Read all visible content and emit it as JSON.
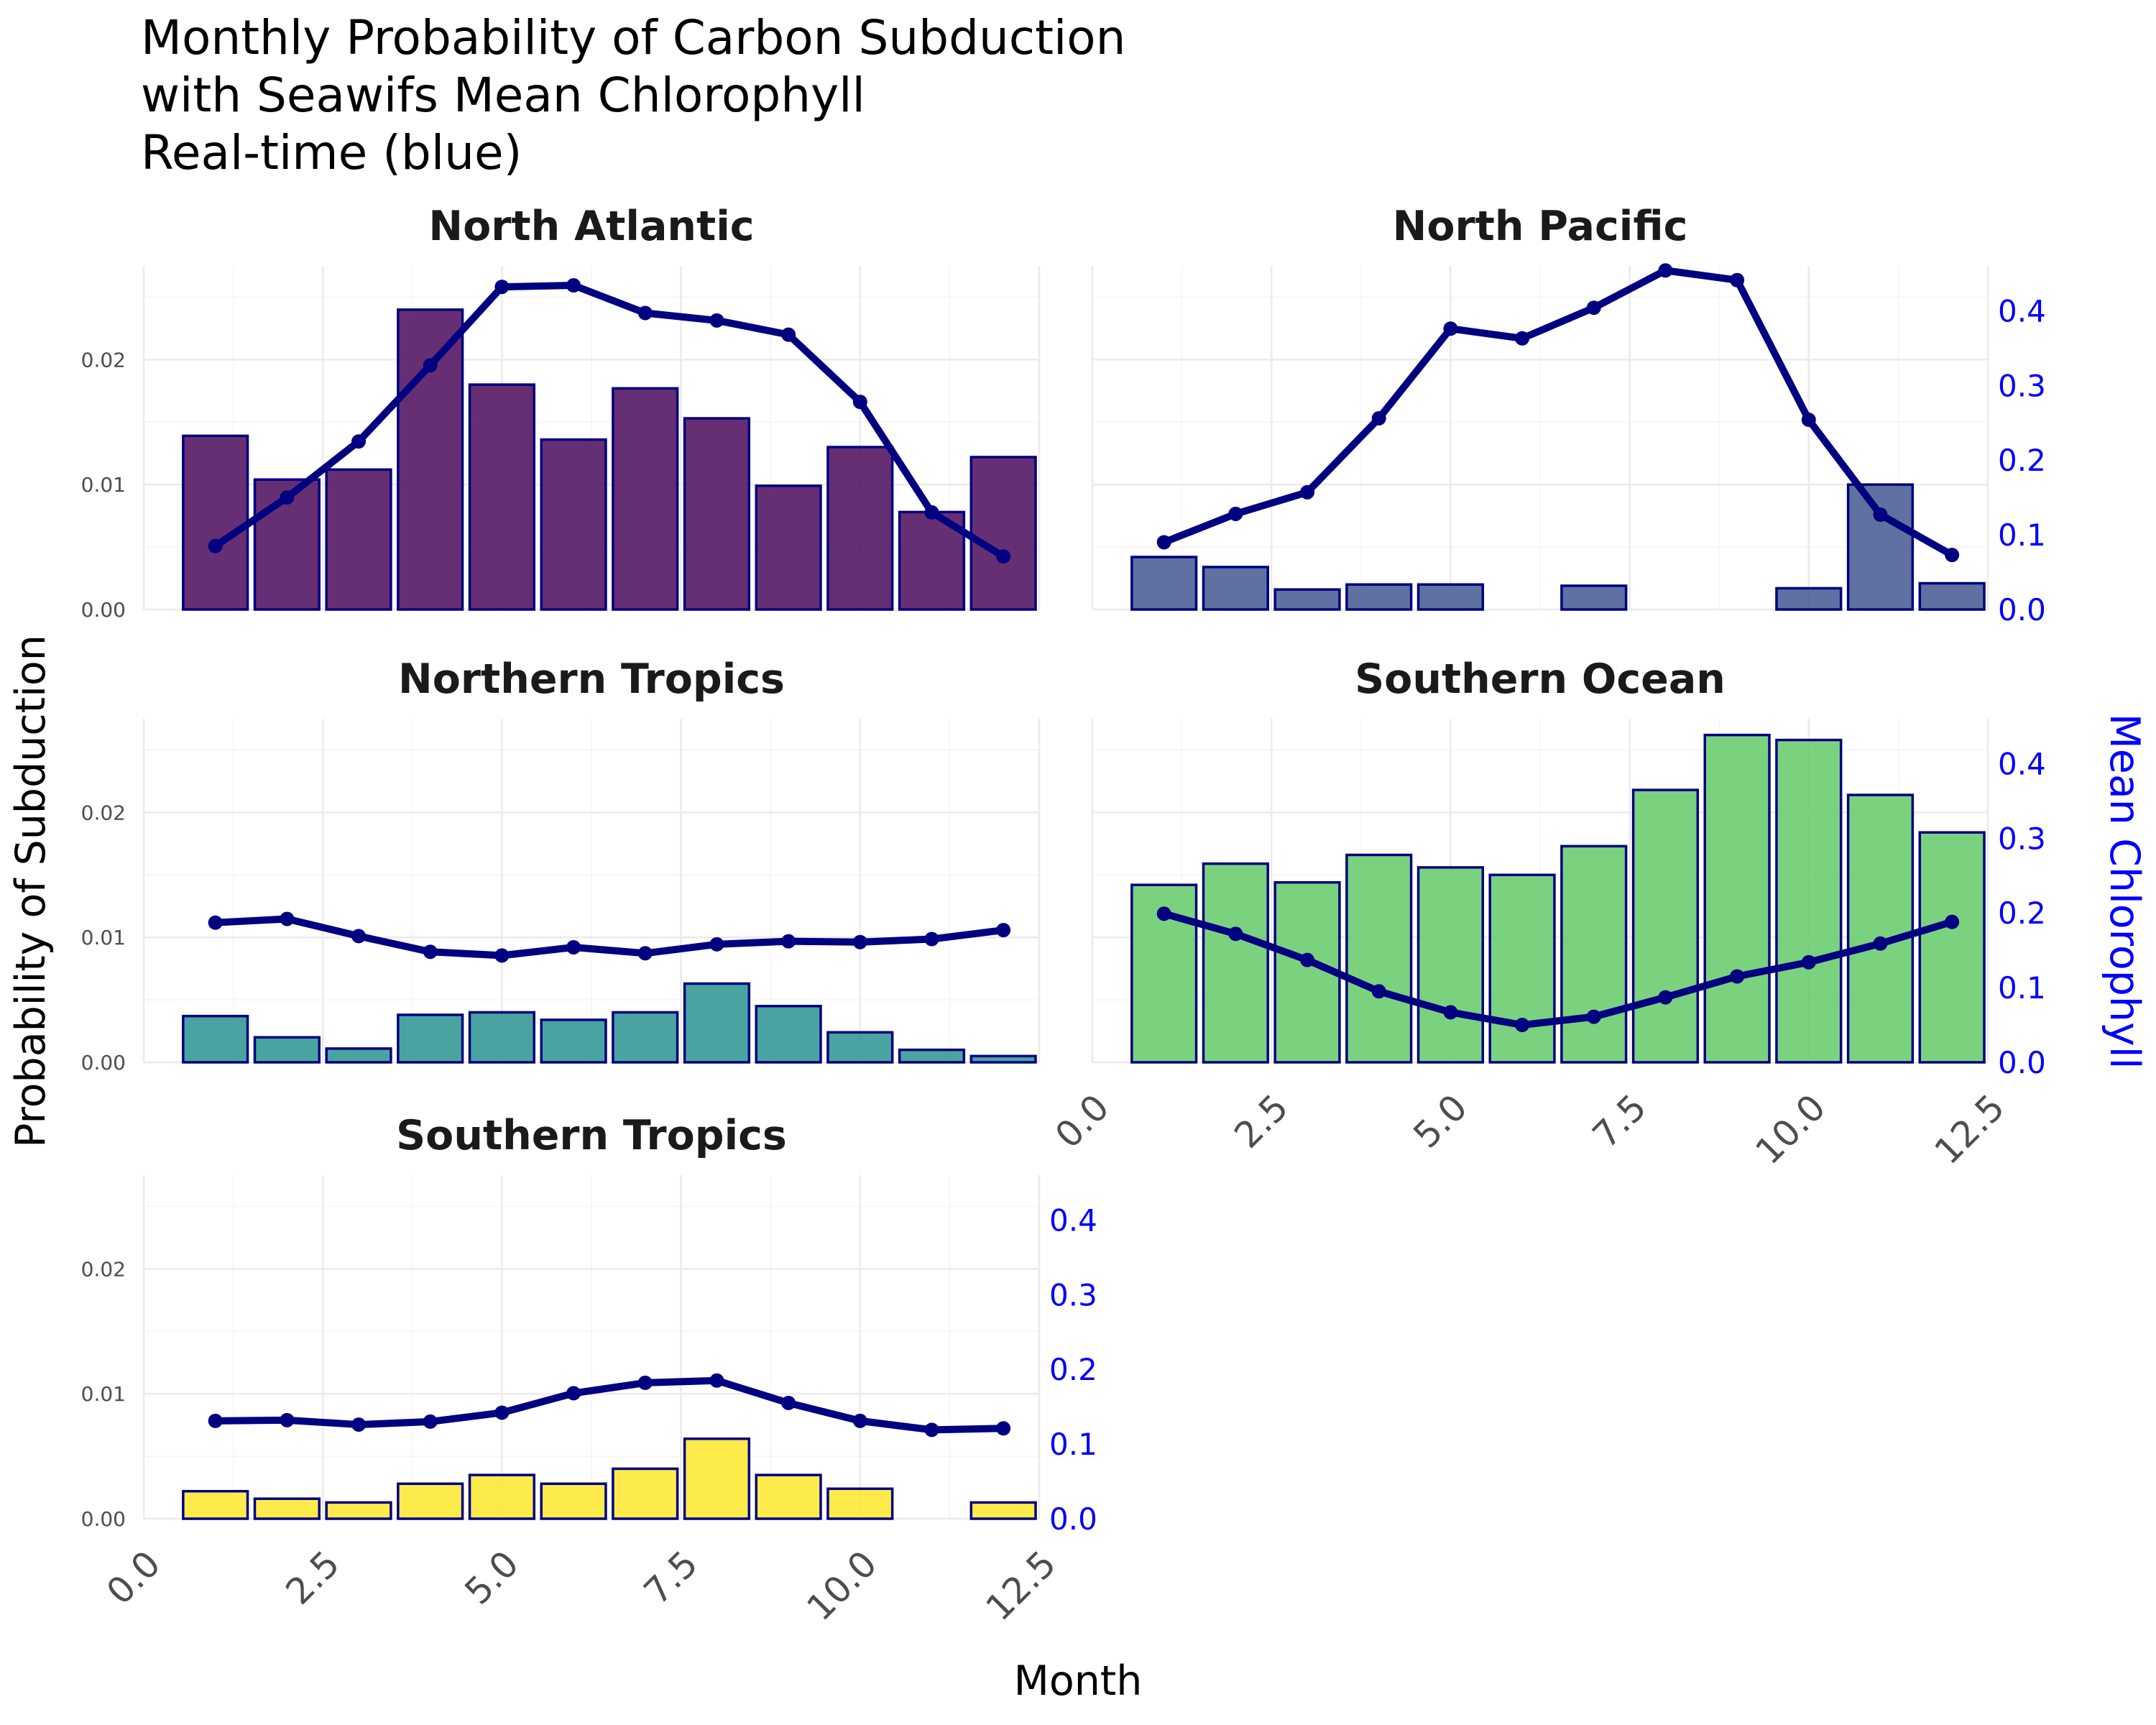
{
  "chart_data": {
    "type": "bar",
    "title_lines": [
      "Monthly Probability of Carbon Subduction",
      "with Seawifs Mean Chlorophyll",
      "Real-time (blue)"
    ],
    "xlabel": "Month",
    "ylabel": "Probability of Subduction",
    "y2label": "Mean Chlorophyll",
    "xlim": [
      0,
      12.5
    ],
    "ylim": [
      0,
      0.0275
    ],
    "y2lim": [
      0,
      0.46
    ],
    "x_ticks": [
      "0.0",
      "2.5",
      "5.0",
      "7.5",
      "10.0",
      "12.5"
    ],
    "y_ticks": [
      "0.00",
      "0.01",
      "0.02"
    ],
    "y2_ticks": [
      "0.0",
      "0.1",
      "0.2",
      "0.3",
      "0.4"
    ],
    "months": [
      1,
      2,
      3,
      4,
      5,
      6,
      7,
      8,
      9,
      10,
      11,
      12
    ],
    "panels": [
      {
        "name": "North Atlantic",
        "fill": "#440154",
        "probability": [
          0.0139,
          0.0104,
          0.0112,
          0.024,
          0.018,
          0.0136,
          0.0177,
          0.0153,
          0.0099,
          0.013,
          0.0078,
          0.0122
        ],
        "chlorophyll": [
          0.085,
          0.15,
          0.225,
          0.327,
          0.432,
          0.434,
          0.397,
          0.387,
          0.368,
          0.278,
          0.13,
          0.071
        ]
      },
      {
        "name": "North Pacific",
        "fill": "#3B528B",
        "probability": [
          0.0042,
          0.0034,
          0.0016,
          0.002,
          0.002,
          0.0,
          0.0019,
          0.0,
          0.0,
          0.0017,
          0.01,
          0.0021
        ],
        "chlorophyll": [
          0.09,
          0.128,
          0.157,
          0.256,
          0.376,
          0.363,
          0.404,
          0.454,
          0.441,
          0.254,
          0.127,
          0.073
        ]
      },
      {
        "name": "Northern Tropics",
        "fill": "#21908C",
        "probability": [
          0.0037,
          0.002,
          0.0011,
          0.0038,
          0.004,
          0.0034,
          0.004,
          0.0063,
          0.0045,
          0.0024,
          0.001,
          0.0005
        ],
        "chlorophyll": [
          0.187,
          0.192,
          0.169,
          0.148,
          0.143,
          0.154,
          0.146,
          0.158,
          0.162,
          0.161,
          0.165,
          0.177
        ]
      },
      {
        "name": "Southern Ocean",
        "fill": "#5DC863",
        "probability": [
          0.0142,
          0.0159,
          0.0144,
          0.0166,
          0.0156,
          0.015,
          0.0173,
          0.0218,
          0.0262,
          0.0258,
          0.0214,
          0.0184
        ],
        "chlorophyll": [
          0.199,
          0.172,
          0.137,
          0.095,
          0.067,
          0.05,
          0.061,
          0.087,
          0.115,
          0.134,
          0.159,
          0.188
        ]
      },
      {
        "name": "Southern Tropics",
        "fill": "#FDE725",
        "probability": [
          0.0022,
          0.0016,
          0.0013,
          0.0028,
          0.0035,
          0.0028,
          0.004,
          0.0064,
          0.0035,
          0.0024,
          0.0,
          0.0013
        ],
        "chlorophyll": [
          0.131,
          0.132,
          0.126,
          0.13,
          0.142,
          0.168,
          0.182,
          0.185,
          0.155,
          0.131,
          0.119,
          0.121
        ]
      }
    ],
    "grid": true,
    "legend": "none"
  }
}
